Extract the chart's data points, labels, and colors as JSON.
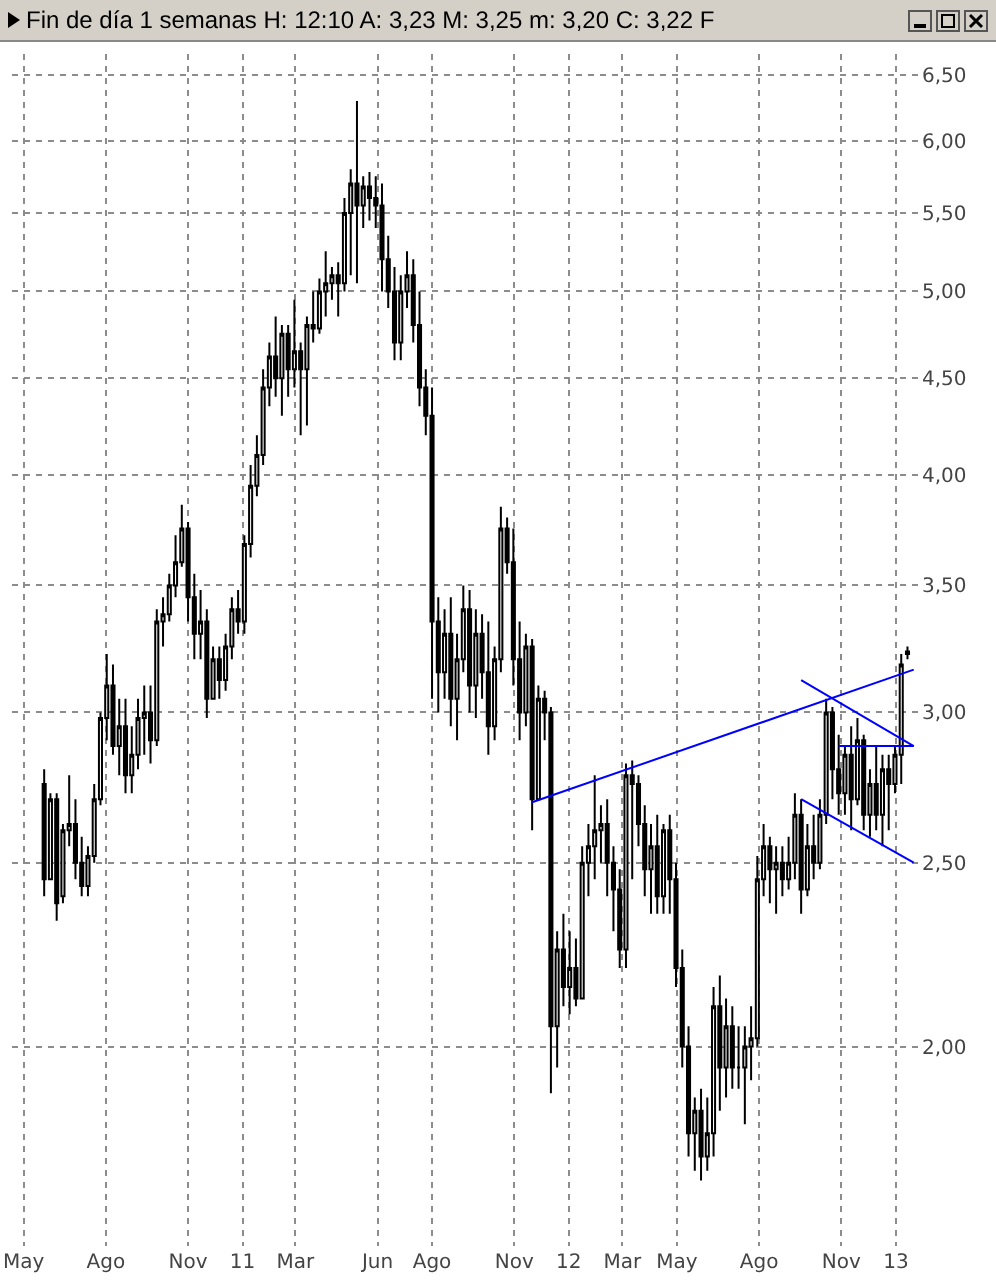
{
  "chart_data": {
    "type": "candlestick",
    "title": "Fin de día 1 semanas  H: 12:10  A: 3,23  M: 3,25  m: 3,20  C: 3,22  F",
    "color": "#000000",
    "x": [
      "2010-05-24",
      "2010-05-31",
      "2010-06-07",
      "2010-06-14",
      "2010-06-21",
      "2010-06-28",
      "2010-07-05",
      "2010-07-12",
      "2010-07-19",
      "2010-07-26",
      "2010-08-02",
      "2010-08-09",
      "2010-08-16",
      "2010-08-23",
      "2010-08-30",
      "2010-09-06",
      "2010-09-13",
      "2010-09-20",
      "2010-09-27",
      "2010-10-04",
      "2010-10-11",
      "2010-10-18",
      "2010-10-25",
      "2010-11-01",
      "2010-11-08",
      "2010-11-15",
      "2010-11-22",
      "2010-11-29",
      "2010-12-06",
      "2010-12-13",
      "2010-12-20",
      "2010-12-27",
      "2011-01-03",
      "2011-01-10",
      "2011-01-17",
      "2011-01-24",
      "2011-01-31",
      "2011-02-07",
      "2011-02-14",
      "2011-02-21",
      "2011-02-28",
      "2011-03-07",
      "2011-03-14",
      "2011-03-21",
      "2011-03-28",
      "2011-04-04",
      "2011-04-11",
      "2011-04-18",
      "2011-04-25",
      "2011-05-02",
      "2011-05-09",
      "2011-05-16",
      "2011-05-23",
      "2011-05-30",
      "2011-06-06",
      "2011-06-13",
      "2011-06-20",
      "2011-06-27",
      "2011-07-04",
      "2011-07-11",
      "2011-07-18",
      "2011-07-25",
      "2011-08-01",
      "2011-08-08",
      "2011-08-15",
      "2011-08-22",
      "2011-08-29",
      "2011-09-05",
      "2011-09-12",
      "2011-09-19",
      "2011-09-26",
      "2011-10-03",
      "2011-10-10",
      "2011-10-17",
      "2011-10-24",
      "2011-10-31",
      "2011-11-07",
      "2011-11-14",
      "2011-11-21",
      "2011-11-28",
      "2011-12-05",
      "2011-12-12",
      "2011-12-19",
      "2011-12-26",
      "2012-01-02",
      "2012-01-09",
      "2012-01-16",
      "2012-01-23",
      "2012-01-30",
      "2012-02-06",
      "2012-02-13",
      "2012-02-20",
      "2012-02-27",
      "2012-03-05",
      "2012-03-12",
      "2012-03-19",
      "2012-03-26",
      "2012-04-02",
      "2012-04-09",
      "2012-04-16",
      "2012-04-23",
      "2012-04-30",
      "2012-05-07",
      "2012-05-14",
      "2012-05-21",
      "2012-05-28",
      "2012-06-04",
      "2012-06-11",
      "2012-06-18",
      "2012-06-25",
      "2012-07-02",
      "2012-07-09",
      "2012-07-16",
      "2012-07-23",
      "2012-07-30",
      "2012-08-06",
      "2012-08-13",
      "2012-08-20",
      "2012-08-27",
      "2012-09-03",
      "2012-09-10",
      "2012-09-17",
      "2012-09-24",
      "2012-10-01",
      "2012-10-08",
      "2012-10-15",
      "2012-10-22",
      "2012-10-29",
      "2012-11-05",
      "2012-11-12",
      "2012-11-19",
      "2012-11-26",
      "2012-12-03",
      "2012-12-10",
      "2012-12-17",
      "2012-12-24",
      "2012-12-31",
      "2013-01-07",
      "2013-01-14"
    ],
    "ohlc": [
      [
        2.75,
        2.8,
        2.4,
        2.45
      ],
      [
        2.45,
        2.72,
        2.45,
        2.7
      ],
      [
        2.7,
        2.72,
        2.33,
        2.38
      ],
      [
        2.4,
        2.62,
        2.38,
        2.6
      ],
      [
        2.6,
        2.78,
        2.55,
        2.62
      ],
      [
        2.62,
        2.7,
        2.45,
        2.5
      ],
      [
        2.5,
        2.58,
        2.4,
        2.43
      ],
      [
        2.43,
        2.55,
        2.4,
        2.52
      ],
      [
        2.52,
        2.75,
        2.5,
        2.7
      ],
      [
        2.7,
        3.0,
        2.68,
        2.98
      ],
      [
        2.98,
        3.22,
        2.9,
        3.1
      ],
      [
        3.1,
        3.18,
        2.85,
        2.88
      ],
      [
        2.88,
        3.05,
        2.78,
        2.95
      ],
      [
        2.95,
        3.05,
        2.72,
        2.78
      ],
      [
        2.78,
        2.95,
        2.72,
        2.85
      ],
      [
        2.85,
        3.05,
        2.8,
        2.98
      ],
      [
        2.98,
        3.1,
        2.85,
        3.0
      ],
      [
        3.0,
        3.1,
        2.82,
        2.9
      ],
      [
        2.9,
        3.4,
        2.88,
        3.35
      ],
      [
        3.35,
        3.45,
        3.25,
        3.38
      ],
      [
        3.38,
        3.55,
        3.35,
        3.5
      ],
      [
        3.5,
        3.72,
        3.45,
        3.6
      ],
      [
        3.6,
        3.86,
        3.58,
        3.75
      ],
      [
        3.75,
        3.78,
        3.35,
        3.45
      ],
      [
        3.45,
        3.55,
        3.2,
        3.3
      ],
      [
        3.3,
        3.48,
        3.2,
        3.35
      ],
      [
        3.35,
        3.4,
        2.98,
        3.05
      ],
      [
        3.05,
        3.25,
        3.05,
        3.2
      ],
      [
        3.2,
        3.25,
        3.05,
        3.12
      ],
      [
        3.12,
        3.3,
        3.08,
        3.25
      ],
      [
        3.25,
        3.45,
        3.2,
        3.4
      ],
      [
        3.4,
        3.48,
        3.3,
        3.35
      ],
      [
        3.35,
        3.72,
        3.3,
        3.68
      ],
      [
        3.68,
        4.05,
        3.62,
        3.95
      ],
      [
        3.95,
        4.2,
        3.9,
        4.1
      ],
      [
        4.1,
        4.55,
        4.05,
        4.45
      ],
      [
        4.45,
        4.7,
        4.35,
        4.62
      ],
      [
        4.62,
        4.85,
        4.4,
        4.5
      ],
      [
        4.5,
        4.8,
        4.3,
        4.75
      ],
      [
        4.75,
        4.8,
        4.4,
        4.55
      ],
      [
        4.55,
        4.95,
        4.45,
        4.65
      ],
      [
        4.65,
        4.7,
        4.2,
        4.55
      ],
      [
        4.55,
        4.85,
        4.25,
        4.8
      ],
      [
        4.8,
        5.0,
        4.7,
        4.78
      ],
      [
        4.78,
        5.08,
        4.75,
        5.0
      ],
      [
        5.0,
        5.25,
        4.85,
        5.05
      ],
      [
        5.05,
        5.15,
        4.95,
        5.1
      ],
      [
        5.1,
        5.18,
        4.85,
        5.05
      ],
      [
        5.05,
        5.6,
        5.0,
        5.5
      ],
      [
        5.5,
        5.8,
        5.1,
        5.7
      ],
      [
        5.7,
        6.3,
        5.05,
        5.55
      ],
      [
        5.55,
        5.75,
        5.4,
        5.68
      ],
      [
        5.68,
        5.78,
        5.45,
        5.6
      ],
      [
        5.6,
        5.75,
        5.4,
        5.55
      ],
      [
        5.55,
        5.7,
        5.0,
        5.2
      ],
      [
        5.2,
        5.35,
        4.9,
        5.0
      ],
      [
        5.0,
        5.15,
        4.6,
        4.7
      ],
      [
        4.7,
        5.1,
        4.6,
        5.0
      ],
      [
        5.0,
        5.25,
        4.9,
        5.1
      ],
      [
        5.1,
        5.2,
        4.7,
        4.8
      ],
      [
        4.8,
        5.0,
        4.35,
        4.45
      ],
      [
        4.45,
        4.55,
        4.2,
        4.3
      ],
      [
        4.3,
        4.45,
        3.05,
        3.35
      ],
      [
        3.35,
        3.45,
        3.0,
        3.15
      ],
      [
        3.15,
        3.4,
        3.05,
        3.3
      ],
      [
        3.3,
        3.45,
        2.95,
        3.05
      ],
      [
        3.05,
        3.3,
        2.9,
        3.2
      ],
      [
        3.2,
        3.5,
        3.15,
        3.4
      ],
      [
        3.4,
        3.48,
        3.0,
        3.1
      ],
      [
        3.1,
        3.4,
        2.98,
        3.3
      ],
      [
        3.3,
        3.38,
        3.05,
        3.15
      ],
      [
        3.15,
        3.35,
        2.85,
        2.95
      ],
      [
        2.95,
        3.25,
        2.9,
        3.2
      ],
      [
        3.2,
        3.85,
        3.15,
        3.75
      ],
      [
        3.75,
        3.8,
        3.55,
        3.6
      ],
      [
        3.6,
        3.75,
        3.1,
        3.2
      ],
      [
        3.2,
        3.35,
        2.9,
        3.0
      ],
      [
        3.0,
        3.3,
        2.95,
        3.25
      ],
      [
        3.25,
        3.28,
        2.6,
        2.7
      ],
      [
        2.7,
        3.1,
        2.7,
        3.05
      ],
      [
        3.05,
        3.08,
        2.9,
        3.0
      ],
      [
        3.0,
        3.02,
        1.89,
        2.05
      ],
      [
        2.05,
        2.3,
        1.95,
        2.25
      ],
      [
        2.25,
        2.35,
        2.1,
        2.15
      ],
      [
        2.15,
        2.3,
        2.08,
        2.2
      ],
      [
        2.2,
        2.28,
        2.1,
        2.12
      ],
      [
        2.12,
        2.55,
        2.12,
        2.5
      ],
      [
        2.5,
        2.62,
        2.4,
        2.55
      ],
      [
        2.55,
        2.78,
        2.45,
        2.6
      ],
      [
        2.6,
        2.68,
        2.5,
        2.62
      ],
      [
        2.62,
        2.7,
        2.4,
        2.5
      ],
      [
        2.5,
        2.55,
        2.3,
        2.42
      ],
      [
        2.42,
        2.48,
        2.2,
        2.25
      ],
      [
        2.25,
        2.82,
        2.2,
        2.78
      ],
      [
        2.78,
        2.83,
        2.45,
        2.75
      ],
      [
        2.75,
        2.78,
        2.55,
        2.62
      ],
      [
        2.62,
        2.68,
        2.4,
        2.48
      ],
      [
        2.48,
        2.62,
        2.35,
        2.55
      ],
      [
        2.55,
        2.65,
        2.35,
        2.4
      ],
      [
        2.4,
        2.62,
        2.35,
        2.6
      ],
      [
        2.6,
        2.65,
        2.35,
        2.45
      ],
      [
        2.45,
        2.5,
        2.15,
        2.2
      ],
      [
        2.2,
        2.25,
        1.95,
        2.0
      ],
      [
        2.0,
        2.05,
        1.75,
        1.8
      ],
      [
        1.8,
        1.88,
        1.72,
        1.85
      ],
      [
        1.85,
        1.9,
        1.7,
        1.75
      ],
      [
        1.75,
        1.88,
        1.72,
        1.8
      ],
      [
        1.8,
        2.15,
        1.75,
        2.1
      ],
      [
        2.1,
        2.18,
        1.85,
        1.95
      ],
      [
        1.95,
        2.12,
        1.88,
        2.05
      ],
      [
        2.05,
        2.1,
        1.9,
        1.95
      ],
      [
        1.95,
        2.05,
        1.9,
        1.95
      ],
      [
        1.95,
        2.05,
        1.82,
        2.0
      ],
      [
        2.0,
        2.1,
        1.92,
        2.02
      ],
      [
        2.02,
        2.52,
        2.0,
        2.45
      ],
      [
        2.45,
        2.62,
        2.4,
        2.55
      ],
      [
        2.55,
        2.58,
        2.38,
        2.48
      ],
      [
        2.48,
        2.55,
        2.35,
        2.5
      ],
      [
        2.5,
        2.55,
        2.4,
        2.45
      ],
      [
        2.45,
        2.58,
        2.42,
        2.5
      ],
      [
        2.5,
        2.72,
        2.45,
        2.65
      ],
      [
        2.65,
        2.7,
        2.35,
        2.42
      ],
      [
        2.42,
        2.62,
        2.4,
        2.55
      ],
      [
        2.55,
        2.65,
        2.45,
        2.5
      ],
      [
        2.5,
        2.7,
        2.48,
        2.65
      ],
      [
        2.65,
        3.05,
        2.62,
        3.0
      ],
      [
        3.0,
        3.02,
        2.7,
        2.8
      ],
      [
        2.8,
        2.92,
        2.65,
        2.72
      ],
      [
        2.72,
        2.88,
        2.65,
        2.85
      ],
      [
        2.85,
        2.95,
        2.6,
        2.7
      ],
      [
        2.7,
        2.98,
        2.68,
        2.9
      ],
      [
        2.9,
        2.92,
        2.6,
        2.65
      ],
      [
        2.65,
        2.8,
        2.58,
        2.75
      ],
      [
        2.75,
        2.88,
        2.6,
        2.65
      ],
      [
        2.65,
        2.85,
        2.55,
        2.8
      ],
      [
        2.8,
        2.85,
        2.6,
        2.75
      ],
      [
        2.75,
        2.88,
        2.72,
        2.85
      ],
      [
        2.85,
        3.22,
        2.75,
        3.18
      ],
      [
        3.23,
        3.25,
        3.2,
        3.22
      ]
    ],
    "series": [
      {
        "type": "line",
        "color": "#0000ff",
        "x": [
          "2011-11-21",
          "2013-01-21"
        ],
        "values": [
          2.69,
          3.16
        ]
      },
      {
        "type": "line",
        "color": "#0000ff",
        "x": [
          "2012-09-17",
          "2013-01-21"
        ],
        "values": [
          3.12,
          2.88
        ]
      },
      {
        "type": "line",
        "color": "#0000ff",
        "x": [
          "2012-10-29",
          "2013-01-21"
        ],
        "values": [
          2.88,
          2.88
        ]
      },
      {
        "type": "line",
        "color": "#0000ff",
        "x": [
          "2012-09-17",
          "2013-01-21"
        ],
        "values": [
          2.7,
          2.5
        ]
      }
    ],
    "log": "y",
    "ylim": [
      1.57,
      6.67
    ],
    "yticks": [
      {
        "value": 2,
        "label": "2,00"
      },
      {
        "value": 2.5,
        "label": "2,50"
      },
      {
        "value": 3,
        "label": "3,00"
      },
      {
        "value": 3.5,
        "label": "3,50"
      },
      {
        "value": 4,
        "label": "4,00"
      },
      {
        "value": 4.5,
        "label": "4,50"
      },
      {
        "value": 5,
        "label": "5,00"
      },
      {
        "value": 5.5,
        "label": "5,50"
      },
      {
        "value": 6,
        "label": "6,00"
      },
      {
        "value": 6.5,
        "label": "6,50"
      }
    ],
    "xlim": [
      "2010-04-18",
      "2013-01-28"
    ],
    "xticks": [
      {
        "value": "2010-05-01",
        "label": "May"
      },
      {
        "value": "2010-08-01",
        "label": "Ago"
      },
      {
        "value": "2010-11-01",
        "label": "Nov"
      },
      {
        "value": "2011-01-01",
        "label": "11"
      },
      {
        "value": "2011-03-01",
        "label": "Mar"
      },
      {
        "value": "2011-06-01",
        "label": "Jun"
      },
      {
        "value": "2011-08-01",
        "label": "Ago"
      },
      {
        "value": "2011-11-01",
        "label": "Nov"
      },
      {
        "value": "2012-01-01",
        "label": "12"
      },
      {
        "value": "2012-03-01",
        "label": "Mar"
      },
      {
        "value": "2012-05-01",
        "label": "May"
      },
      {
        "value": "2012-08-01",
        "label": "Ago"
      },
      {
        "value": "2012-11-01",
        "label": "Nov"
      },
      {
        "value": "2013-01-01",
        "label": "13"
      }
    ],
    "grid": true
  }
}
